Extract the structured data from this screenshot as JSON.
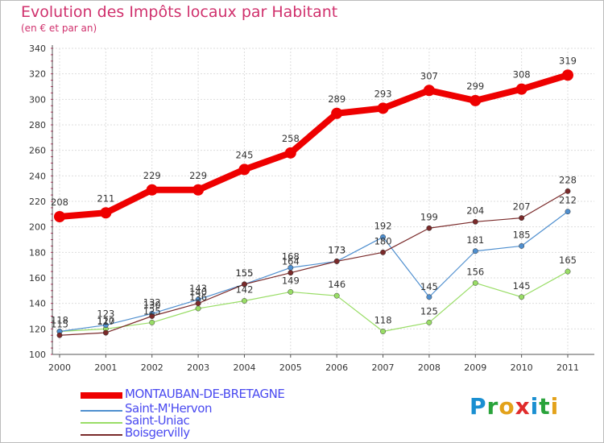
{
  "title": "Evolution des Impôts locaux par Habitant",
  "subtitle": "(en € et par an)",
  "logo": {
    "letters": [
      "P",
      "r",
      "o",
      "x",
      "i",
      "t",
      "i"
    ],
    "colors": [
      "#1a8fd1",
      "#2aa33b",
      "#e3a21a",
      "#e02b2b",
      "#1a8fd1",
      "#2aa33b",
      "#e3a21a"
    ]
  },
  "chart_data": {
    "type": "line",
    "title": "Evolution des Impôts locaux par Habitant",
    "ylabel": "(en € et par an)",
    "xlabel": "",
    "x": [
      "2000",
      "2001",
      "2002",
      "2003",
      "2004",
      "2005",
      "2006",
      "2007",
      "2008",
      "2009",
      "2010",
      "2011"
    ],
    "ylim": [
      100,
      340
    ],
    "yticks": [
      "100",
      "120",
      "140",
      "160",
      "180",
      "200",
      "220",
      "240",
      "260",
      "280",
      "300",
      "320",
      "340"
    ],
    "grid": true,
    "legend_position": "bottom-left",
    "series": [
      {
        "name": "MONTAUBAN-DE-BRETAGNE",
        "color": "#ee0000",
        "width": 8,
        "values": [
          208,
          211,
          229,
          229,
          245,
          258,
          289,
          293,
          307,
          299,
          308,
          319
        ]
      },
      {
        "name": "Saint-M'Hervon",
        "color": "#4f8fcf",
        "width": 1.2,
        "values": [
          118,
          123,
          132,
          143,
          155,
          168,
          173,
          192,
          145,
          181,
          185,
          212
        ]
      },
      {
        "name": "Saint-Uniac",
        "color": "#99dd66",
        "width": 1.2,
        "values": [
          118,
          120,
          125,
          136,
          142,
          149,
          146,
          118,
          125,
          156,
          145,
          165
        ]
      },
      {
        "name": "Boisgervilly",
        "color": "#7a2a2a",
        "width": 1.2,
        "values": [
          115,
          117,
          130,
          140,
          155,
          164,
          173,
          180,
          199,
          204,
          207,
          228
        ]
      }
    ],
    "point_labels": [
      [
        "208",
        "211",
        "229",
        "229",
        "245",
        "258",
        "289",
        "293",
        "307",
        "299",
        "308",
        "319"
      ],
      [
        "118",
        "123",
        "132",
        "143",
        "155",
        "168",
        "173",
        "192",
        "145",
        "181",
        "185",
        "212"
      ],
      [
        "",
        "120",
        "125",
        "136",
        "142",
        "149",
        "146",
        "118",
        "125",
        "156",
        "145",
        "165"
      ],
      [
        "115",
        "117",
        "130",
        "140",
        "155",
        "164",
        "173",
        "180",
        "199",
        "204",
        "207",
        "228"
      ]
    ]
  }
}
